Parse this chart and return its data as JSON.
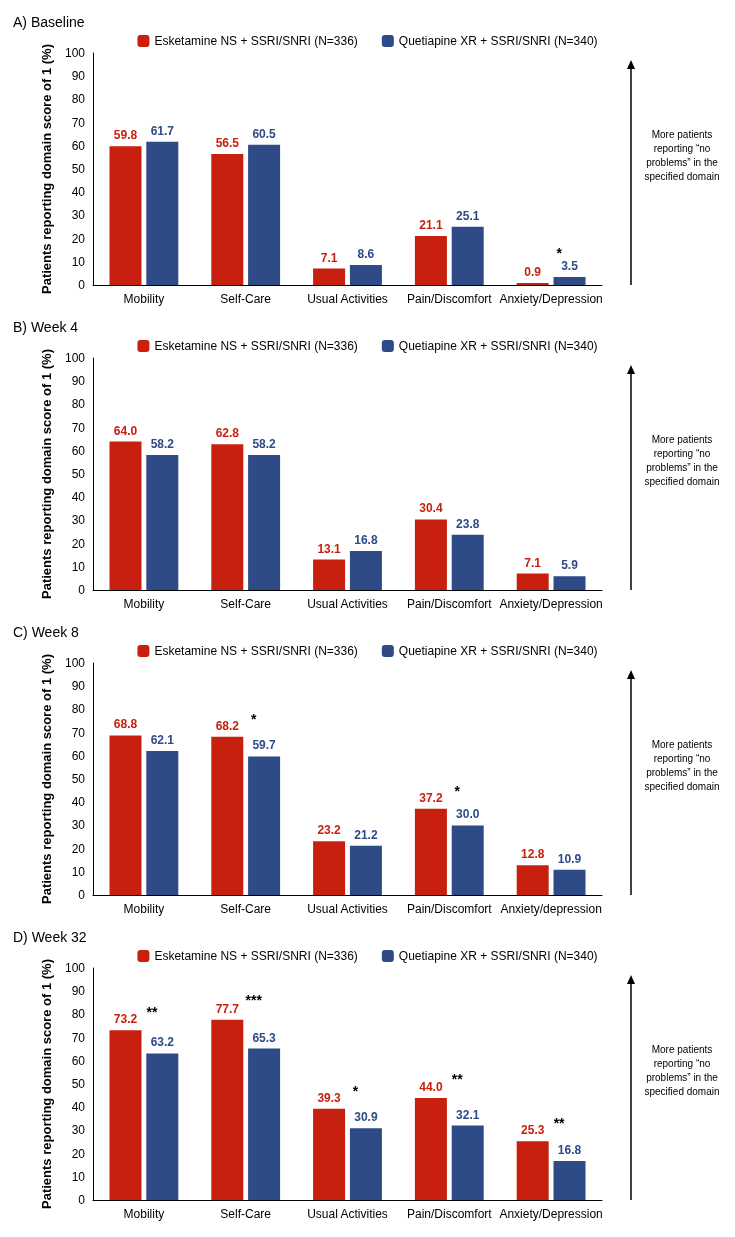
{
  "chart_data": [
    {
      "type": "bar",
      "title": "A) Baseline",
      "ylabel": "Patients reporting domain score of 1 (%)",
      "categories": [
        "Mobility",
        "Self-Care",
        "Usual Activities",
        "Pain/Discomfort",
        "Anxiety/Depression"
      ],
      "series": [
        {
          "name": "Esketamine NS + SSRI/SNRI (N=336)",
          "color": "#c8200e",
          "values": [
            59.8,
            56.5,
            7.1,
            21.1,
            0.9
          ],
          "value_labels": [
            "59.8",
            "56.5",
            "7.1",
            "21.1",
            "0.9"
          ]
        },
        {
          "name": "Quetiapine XR + SSRI/SNRI (N=340)",
          "color": "#2e4a87",
          "values": [
            61.7,
            60.5,
            8.6,
            25.1,
            3.5
          ],
          "value_labels": [
            "61.7",
            "60.5",
            "8.6",
            "25.1",
            "3.5"
          ]
        }
      ],
      "ylim": [
        0,
        100
      ],
      "yticks": [
        0,
        10,
        20,
        30,
        40,
        50,
        60,
        70,
        80,
        90,
        100
      ],
      "legend": "top",
      "grid": false,
      "annotations": [
        "*",
        "More patients reporting “no problems” in the specified domain"
      ]
    },
    {
      "type": "bar",
      "title": "B) Week 4",
      "ylabel": "Patients reporting domain score of 1 (%)",
      "categories": [
        "Mobility",
        "Self-Care",
        "Usual Activities",
        "Pain/Discomfort",
        "Anxiety/Depression"
      ],
      "series": [
        {
          "name": "Esketamine NS + SSRI/SNRI (N=336)",
          "color": "#c8200e",
          "values": [
            64.0,
            62.8,
            13.1,
            30.4,
            7.1
          ],
          "value_labels": [
            "64.0",
            "62.8",
            "13.1",
            "30.4",
            "7.1"
          ]
        },
        {
          "name": "Quetiapine XR + SSRI/SNRI (N=340)",
          "color": "#2e4a87",
          "values": [
            58.2,
            58.2,
            16.8,
            23.8,
            5.9
          ],
          "value_labels": [
            "58.2",
            "58.2",
            "16.8",
            "23.8",
            "5.9"
          ]
        }
      ],
      "ylim": [
        0,
        100
      ],
      "yticks": [
        0,
        10,
        20,
        30,
        40,
        50,
        60,
        70,
        80,
        90,
        100
      ],
      "legend": "top",
      "grid": false,
      "annotations": [
        "More patients reporting “no problems” in the specified domain"
      ]
    },
    {
      "type": "bar",
      "title": "C) Week 8",
      "ylabel": "Patients reporting domain score of 1 (%)",
      "categories": [
        "Mobility",
        "Self-Care",
        "Usual Activities",
        "Pain/Discomfort",
        "Anxiety/depression"
      ],
      "series": [
        {
          "name": "Esketamine NS + SSRI/SNRI (N=336)",
          "color": "#c8200e",
          "values": [
            68.8,
            68.2,
            23.2,
            37.2,
            12.8
          ],
          "value_labels": [
            "68.8",
            "68.2",
            "23.2",
            "37.2",
            "12.8"
          ]
        },
        {
          "name": "Quetiapine XR + SSRI/SNRI (N=340)",
          "color": "#2e4a87",
          "values": [
            62.1,
            59.7,
            21.2,
            30.0,
            10.9
          ],
          "value_labels": [
            "62.1",
            "59.7",
            "21.2",
            "30.0",
            "10.9"
          ]
        }
      ],
      "ylim": [
        0,
        100
      ],
      "yticks": [
        0,
        10,
        20,
        30,
        40,
        50,
        60,
        70,
        80,
        90,
        100
      ],
      "legend": "top",
      "grid": false,
      "annotations": [
        "*",
        "*",
        "More patients reporting “no problems” in the specified domain"
      ]
    },
    {
      "type": "bar",
      "title": "D) Week 32",
      "ylabel": "Patients reporting domain score of 1 (%)",
      "categories": [
        "Mobility",
        "Self-Care",
        "Usual Activities",
        "Pain/Discomfort",
        "Anxiety/Depression"
      ],
      "series": [
        {
          "name": "Esketamine NS + SSRI/SNRI (N=336)",
          "color": "#c8200e",
          "values": [
            73.2,
            77.7,
            39.3,
            44.0,
            25.3
          ],
          "value_labels": [
            "73.2",
            "77.7",
            "39.3",
            "44.0",
            "25.3"
          ]
        },
        {
          "name": "Quetiapine XR + SSRI/SNRI (N=340)",
          "color": "#2e4a87",
          "values": [
            63.2,
            65.3,
            30.9,
            32.1,
            16.8
          ],
          "value_labels": [
            "63.2",
            "65.3",
            "30.9",
            "32.1",
            "16.8"
          ]
        }
      ],
      "ylim": [
        0,
        100
      ],
      "yticks": [
        0,
        10,
        20,
        30,
        40,
        50,
        60,
        70,
        80,
        90,
        100
      ],
      "legend": "top",
      "grid": false,
      "annotations": [
        "**",
        "***",
        "*",
        "**",
        "**",
        "More patients reporting “no problems” in the specified domain"
      ]
    }
  ]
}
